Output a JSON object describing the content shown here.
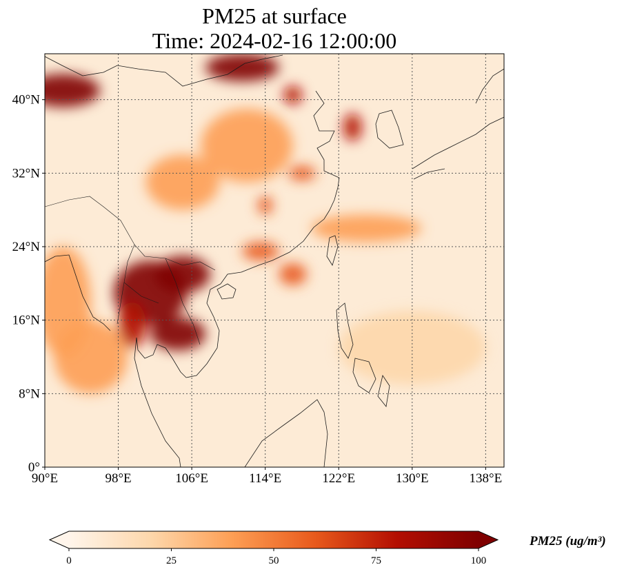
{
  "title": {
    "line1": "PM25 at surface",
    "line2": "Time: 2024-02-16 12:00:00"
  },
  "map": {
    "lon_range": [
      90,
      140
    ],
    "lat_range": [
      0,
      45
    ],
    "lon_ticks": [
      {
        "value": 90,
        "label": "90°E"
      },
      {
        "value": 98,
        "label": "98°E"
      },
      {
        "value": 106,
        "label": "106°E"
      },
      {
        "value": 114,
        "label": "114°E"
      },
      {
        "value": 122,
        "label": "122°E"
      },
      {
        "value": 130,
        "label": "130°E"
      },
      {
        "value": 138,
        "label": "138°E"
      }
    ],
    "lat_ticks": [
      {
        "value": 0,
        "label": "0°"
      },
      {
        "value": 8,
        "label": "8°N"
      },
      {
        "value": 16,
        "label": "16°N"
      },
      {
        "value": 24,
        "label": "24°N"
      },
      {
        "value": 32,
        "label": "32°N"
      },
      {
        "value": 40,
        "label": "40°N"
      }
    ],
    "gridlines": true,
    "colormap": [
      "#fff5eb",
      "#fdd7ab",
      "#fd9e54",
      "#e85a1c",
      "#b30f02",
      "#7f0000"
    ],
    "hotspots": [
      {
        "lon": 92,
        "lat": 41,
        "rlon": 4,
        "rlat": 1.8,
        "v": 100
      },
      {
        "lon": 111.5,
        "lat": 43.5,
        "rlon": 4,
        "rlat": 1.5,
        "v": 100
      },
      {
        "lon": 101.5,
        "lat": 19,
        "rlon": 4,
        "rlat": 3.5,
        "v": 100
      },
      {
        "lon": 105,
        "lat": 21,
        "rlon": 3,
        "rlat": 2,
        "v": 95
      },
      {
        "lon": 104.5,
        "lat": 14.5,
        "rlon": 3,
        "rlat": 1.8,
        "v": 95
      },
      {
        "lon": 99.5,
        "lat": 15.5,
        "rlon": 1.5,
        "rlat": 2.5,
        "v": 80
      },
      {
        "lon": 117,
        "lat": 21,
        "rlon": 1.5,
        "rlat": 1.2,
        "v": 70
      },
      {
        "lon": 113.5,
        "lat": 23.5,
        "rlon": 2,
        "rlat": 1,
        "v": 70
      },
      {
        "lon": 114,
        "lat": 28.5,
        "rlon": 0.8,
        "rlat": 1,
        "v": 70
      },
      {
        "lon": 118,
        "lat": 32,
        "rlon": 1.5,
        "rlat": 0.8,
        "v": 70
      },
      {
        "lon": 123.5,
        "lat": 37,
        "rlon": 1,
        "rlat": 1.5,
        "v": 80
      },
      {
        "lon": 117,
        "lat": 40.5,
        "rlon": 1,
        "rlat": 1,
        "v": 75
      },
      {
        "lon": 105,
        "lat": 31,
        "rlon": 4,
        "rlat": 3,
        "v": 40
      },
      {
        "lon": 112,
        "lat": 35,
        "rlon": 5,
        "rlat": 4,
        "v": 35
      },
      {
        "lon": 92,
        "lat": 18,
        "rlon": 3,
        "rlat": 6,
        "v": 45
      },
      {
        "lon": 95,
        "lat": 12,
        "rlon": 4,
        "rlat": 4,
        "v": 35
      },
      {
        "lon": 130,
        "lat": 13,
        "rlon": 8,
        "rlat": 4,
        "v": 25
      },
      {
        "lon": 125,
        "lat": 26,
        "rlon": 6,
        "rlat": 1.5,
        "v": 35
      }
    ]
  },
  "colorbar": {
    "title": "PM25 (ug/m³)",
    "min": 0,
    "max": 100,
    "extend": "both",
    "ticks": [
      {
        "value": 0,
        "label": "0"
      },
      {
        "value": 25,
        "label": "25"
      },
      {
        "value": 50,
        "label": "50"
      },
      {
        "value": 75,
        "label": "75"
      },
      {
        "value": 100,
        "label": "100"
      }
    ]
  }
}
